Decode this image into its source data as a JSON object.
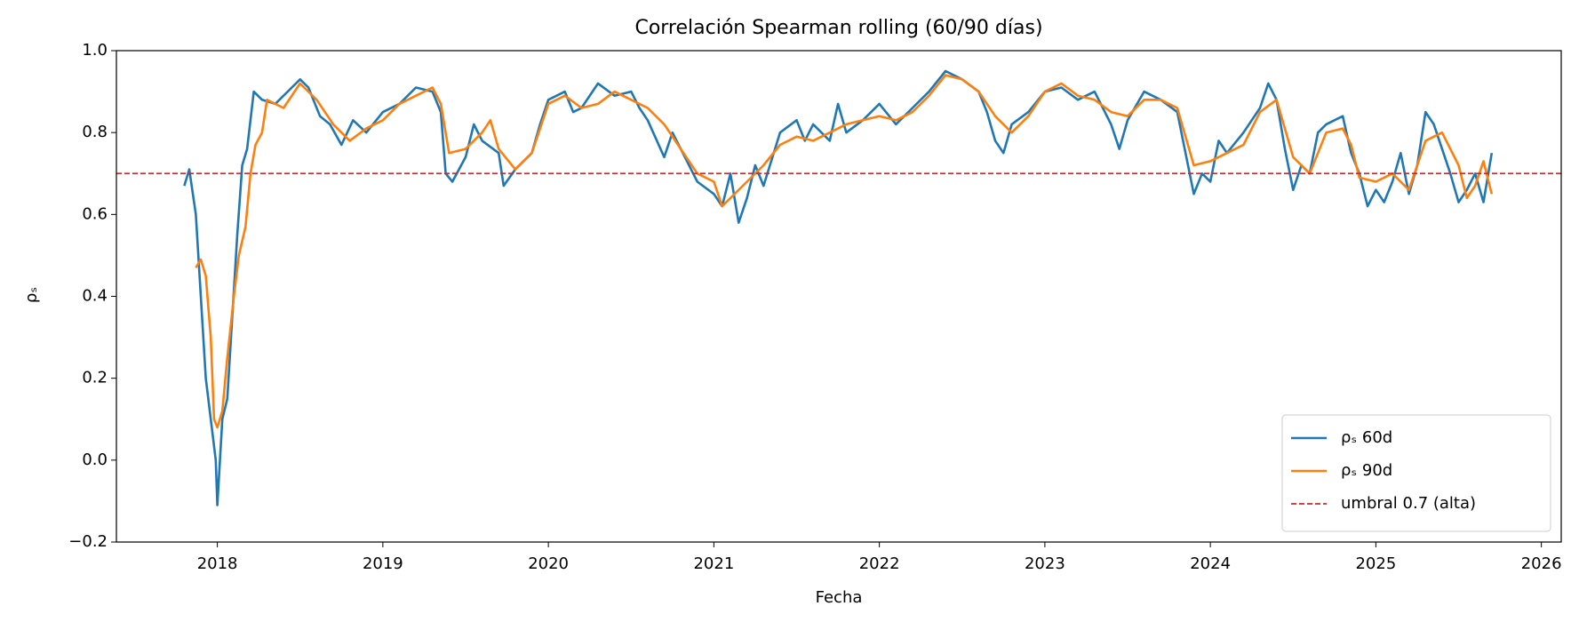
{
  "chart_data": {
    "type": "line",
    "title": "Correlación Spearman rolling (60/90 días)",
    "x_label": "Fecha",
    "y_label": "ρₛ",
    "xlim": [
      2017.39,
      2026.12
    ],
    "xticks": [
      2018,
      2019,
      2020,
      2021,
      2022,
      2023,
      2024,
      2025,
      2026
    ],
    "ylim": [
      -0.2,
      1.0
    ],
    "yticks": [
      {
        "value": -0.2,
        "label": "−0.2"
      },
      {
        "value": 0,
        "label": "0.0"
      },
      0.2,
      0.4,
      0.6,
      0.8,
      {
        "value": 1.0,
        "label": "1.0"
      }
    ],
    "grid": false,
    "legend": "lower right",
    "hline": {
      "name": "umbral 0.7 (alta)",
      "value": 0.7,
      "color": "#d62728"
    },
    "series": [
      {
        "name": "ρₛ 60d",
        "color": "#1f77b4",
        "x": [
          2017.8,
          2017.83,
          2017.87,
          2017.9,
          2017.93,
          2017.96,
          2017.99,
          2018.0,
          2018.03,
          2018.06,
          2018.09,
          2018.12,
          2018.15,
          2018.18,
          2018.22,
          2018.27,
          2018.35,
          2018.45,
          2018.5,
          2018.55,
          2018.62,
          2018.68,
          2018.75,
          2018.82,
          2018.9,
          2019.0,
          2019.1,
          2019.2,
          2019.3,
          2019.35,
          2019.38,
          2019.42,
          2019.5,
          2019.55,
          2019.6,
          2019.7,
          2019.73,
          2019.8,
          2019.9,
          2019.95,
          2020.0,
          2020.1,
          2020.15,
          2020.2,
          2020.3,
          2020.4,
          2020.5,
          2020.55,
          2020.6,
          2020.7,
          2020.75,
          2020.8,
          2020.9,
          2021.0,
          2021.05,
          2021.1,
          2021.15,
          2021.2,
          2021.25,
          2021.3,
          2021.4,
          2021.5,
          2021.55,
          2021.6,
          2021.7,
          2021.75,
          2021.8,
          2021.9,
          2022.0,
          2022.1,
          2022.2,
          2022.3,
          2022.4,
          2022.5,
          2022.6,
          2022.65,
          2022.7,
          2022.75,
          2022.8,
          2022.9,
          2023.0,
          2023.1,
          2023.2,
          2023.3,
          2023.4,
          2023.45,
          2023.5,
          2023.6,
          2023.7,
          2023.8,
          2023.85,
          2023.9,
          2023.95,
          2024.0,
          2024.05,
          2024.1,
          2024.2,
          2024.3,
          2024.35,
          2024.4,
          2024.45,
          2024.5,
          2024.55,
          2024.6,
          2024.65,
          2024.7,
          2024.8,
          2024.85,
          2024.9,
          2024.95,
          2025.0,
          2025.05,
          2025.1,
          2025.15,
          2025.2,
          2025.25,
          2025.3,
          2025.35,
          2025.4,
          2025.45,
          2025.5,
          2025.55,
          2025.6,
          2025.65,
          2025.7
        ],
        "values": [
          0.67,
          0.71,
          0.6,
          0.4,
          0.2,
          0.1,
          0.0,
          -0.11,
          0.1,
          0.15,
          0.35,
          0.55,
          0.72,
          0.76,
          0.9,
          0.88,
          0.87,
          0.91,
          0.93,
          0.91,
          0.84,
          0.82,
          0.77,
          0.83,
          0.8,
          0.85,
          0.87,
          0.91,
          0.9,
          0.85,
          0.7,
          0.68,
          0.74,
          0.82,
          0.78,
          0.75,
          0.67,
          0.71,
          0.75,
          0.82,
          0.88,
          0.9,
          0.85,
          0.86,
          0.92,
          0.89,
          0.9,
          0.86,
          0.83,
          0.74,
          0.8,
          0.76,
          0.68,
          0.65,
          0.62,
          0.7,
          0.58,
          0.64,
          0.72,
          0.67,
          0.8,
          0.83,
          0.78,
          0.82,
          0.78,
          0.87,
          0.8,
          0.83,
          0.87,
          0.82,
          0.86,
          0.9,
          0.95,
          0.93,
          0.9,
          0.85,
          0.78,
          0.75,
          0.82,
          0.85,
          0.9,
          0.91,
          0.88,
          0.9,
          0.82,
          0.76,
          0.83,
          0.9,
          0.88,
          0.85,
          0.75,
          0.65,
          0.7,
          0.68,
          0.78,
          0.75,
          0.8,
          0.86,
          0.92,
          0.88,
          0.76,
          0.66,
          0.72,
          0.7,
          0.8,
          0.82,
          0.84,
          0.75,
          0.7,
          0.62,
          0.66,
          0.63,
          0.68,
          0.75,
          0.65,
          0.72,
          0.85,
          0.82,
          0.76,
          0.7,
          0.63,
          0.66,
          0.7,
          0.63,
          0.75
        ]
      },
      {
        "name": "ρₛ 90d",
        "color": "#ff7f0e",
        "x": [
          2017.87,
          2017.9,
          2017.93,
          2017.96,
          2017.98,
          2018.0,
          2018.03,
          2018.06,
          2018.1,
          2018.13,
          2018.17,
          2018.2,
          2018.23,
          2018.27,
          2018.3,
          2018.4,
          2018.5,
          2018.6,
          2018.7,
          2018.8,
          2018.9,
          2019.0,
          2019.1,
          2019.2,
          2019.3,
          2019.35,
          2019.4,
          2019.5,
          2019.6,
          2019.65,
          2019.7,
          2019.8,
          2019.9,
          2020.0,
          2020.1,
          2020.2,
          2020.3,
          2020.4,
          2020.5,
          2020.6,
          2020.7,
          2020.8,
          2020.9,
          2021.0,
          2021.05,
          2021.1,
          2021.2,
          2021.3,
          2021.4,
          2021.5,
          2021.6,
          2021.7,
          2021.8,
          2021.9,
          2022.0,
          2022.1,
          2022.2,
          2022.3,
          2022.4,
          2022.5,
          2022.6,
          2022.7,
          2022.8,
          2022.9,
          2023.0,
          2023.1,
          2023.2,
          2023.3,
          2023.4,
          2023.5,
          2023.6,
          2023.7,
          2023.8,
          2023.9,
          2024.0,
          2024.1,
          2024.2,
          2024.3,
          2024.4,
          2024.45,
          2024.5,
          2024.6,
          2024.7,
          2024.8,
          2024.85,
          2024.9,
          2025.0,
          2025.1,
          2025.2,
          2025.3,
          2025.4,
          2025.5,
          2025.55,
          2025.6,
          2025.65,
          2025.7
        ],
        "values": [
          0.47,
          0.49,
          0.45,
          0.3,
          0.1,
          0.08,
          0.12,
          0.25,
          0.4,
          0.5,
          0.57,
          0.7,
          0.77,
          0.8,
          0.88,
          0.86,
          0.92,
          0.88,
          0.82,
          0.78,
          0.81,
          0.83,
          0.87,
          0.89,
          0.91,
          0.87,
          0.75,
          0.76,
          0.8,
          0.83,
          0.76,
          0.71,
          0.75,
          0.87,
          0.89,
          0.86,
          0.87,
          0.9,
          0.88,
          0.86,
          0.82,
          0.76,
          0.7,
          0.68,
          0.62,
          0.64,
          0.68,
          0.72,
          0.77,
          0.79,
          0.78,
          0.8,
          0.82,
          0.83,
          0.84,
          0.83,
          0.85,
          0.89,
          0.94,
          0.93,
          0.9,
          0.84,
          0.8,
          0.84,
          0.9,
          0.92,
          0.89,
          0.88,
          0.85,
          0.84,
          0.88,
          0.88,
          0.86,
          0.72,
          0.73,
          0.75,
          0.77,
          0.85,
          0.88,
          0.81,
          0.74,
          0.7,
          0.8,
          0.81,
          0.77,
          0.69,
          0.68,
          0.7,
          0.66,
          0.78,
          0.8,
          0.72,
          0.64,
          0.67,
          0.73,
          0.65
        ]
      }
    ]
  }
}
